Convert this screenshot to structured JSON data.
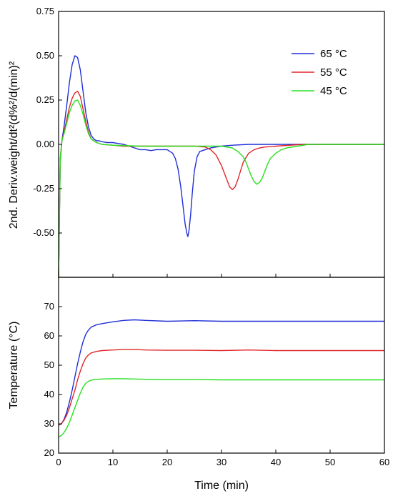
{
  "chart_data": [
    {
      "type": "line",
      "panel": "top",
      "ylabel": "2nd. Deriv.weight/dt²(d%²/d(min)²",
      "ylim": [
        -0.75,
        0.75
      ],
      "yticks": [
        "-0.50",
        "-0.25",
        "0.00",
        "0.25",
        "0.50",
        "0.75"
      ],
      "xlim": [
        0,
        60
      ],
      "legend_placement": "top-right",
      "series": [
        {
          "name": "65 °C",
          "color": "#1f2fd6",
          "x": [
            0.0,
            0.3,
            0.6,
            1.0,
            1.5,
            2.0,
            2.5,
            3.0,
            3.5,
            4.0,
            4.5,
            5.0,
            5.5,
            6.0,
            6.5,
            7.0,
            7.5,
            8.0,
            9.0,
            10.0,
            11.0,
            12.0,
            13.0,
            14.0,
            15.0,
            16.0,
            17.0,
            18.0,
            19.0,
            20.0,
            21.0,
            21.5,
            22.0,
            22.5,
            23.0,
            23.3,
            23.6,
            23.8,
            24.0,
            24.3,
            24.6,
            25.0,
            25.5,
            26.0,
            27.0,
            28.0,
            29.0,
            30.0,
            32.0,
            35.0,
            40.0,
            45.0,
            50.0,
            55.0,
            60.0
          ],
          "y": [
            -0.75,
            -0.1,
            0.02,
            0.1,
            0.22,
            0.35,
            0.45,
            0.5,
            0.49,
            0.42,
            0.3,
            0.18,
            0.1,
            0.05,
            0.03,
            0.02,
            0.02,
            0.015,
            0.01,
            0.01,
            0.005,
            0.0,
            -0.01,
            -0.02,
            -0.03,
            -0.03,
            -0.035,
            -0.03,
            -0.03,
            -0.03,
            -0.05,
            -0.08,
            -0.14,
            -0.24,
            -0.37,
            -0.45,
            -0.5,
            -0.52,
            -0.49,
            -0.4,
            -0.28,
            -0.15,
            -0.07,
            -0.04,
            -0.03,
            -0.02,
            -0.015,
            -0.01,
            -0.005,
            0.0,
            0.0,
            0.0,
            0.0,
            0.0,
            0.0
          ]
        },
        {
          "name": "55 °C",
          "color": "#e0262b",
          "x": [
            0.0,
            0.3,
            0.6,
            1.0,
            1.5,
            2.0,
            2.5,
            3.0,
            3.5,
            4.0,
            4.5,
            5.0,
            5.5,
            6.0,
            7.0,
            8.0,
            10.0,
            12.0,
            15.0,
            20.0,
            25.0,
            27.0,
            28.0,
            29.0,
            30.0,
            30.5,
            31.0,
            31.5,
            32.0,
            32.5,
            33.0,
            33.5,
            34.0,
            35.0,
            36.0,
            37.0,
            38.0,
            40.0,
            45.0,
            50.0,
            55.0,
            60.0
          ],
          "y": [
            -0.75,
            -0.08,
            0.02,
            0.07,
            0.14,
            0.21,
            0.26,
            0.29,
            0.3,
            0.27,
            0.2,
            0.13,
            0.07,
            0.03,
            0.01,
            0.0,
            -0.005,
            -0.01,
            -0.01,
            -0.01,
            -0.01,
            -0.015,
            -0.03,
            -0.06,
            -0.12,
            -0.16,
            -0.2,
            -0.24,
            -0.255,
            -0.24,
            -0.2,
            -0.15,
            -0.1,
            -0.05,
            -0.03,
            -0.02,
            -0.015,
            -0.01,
            0.0,
            0.0,
            0.0,
            0.0
          ]
        },
        {
          "name": "45 °C",
          "color": "#27e01e",
          "x": [
            0.0,
            0.3,
            0.6,
            1.0,
            1.5,
            2.0,
            2.5,
            3.0,
            3.5,
            4.0,
            4.5,
            5.0,
            5.5,
            6.0,
            7.0,
            8.0,
            10.0,
            15.0,
            20.0,
            25.0,
            30.0,
            32.0,
            33.0,
            34.0,
            34.5,
            35.0,
            35.5,
            36.0,
            36.5,
            37.0,
            37.5,
            38.0,
            38.5,
            39.0,
            40.0,
            41.0,
            42.0,
            44.0,
            46.0,
            50.0,
            55.0,
            60.0
          ],
          "y": [
            -0.75,
            -0.08,
            0.02,
            0.06,
            0.12,
            0.18,
            0.22,
            0.245,
            0.25,
            0.22,
            0.17,
            0.11,
            0.06,
            0.03,
            0.01,
            0.0,
            -0.005,
            -0.01,
            -0.01,
            -0.01,
            -0.01,
            -0.02,
            -0.04,
            -0.07,
            -0.1,
            -0.14,
            -0.18,
            -0.21,
            -0.225,
            -0.215,
            -0.19,
            -0.15,
            -0.11,
            -0.08,
            -0.05,
            -0.03,
            -0.02,
            -0.01,
            0.0,
            0.0,
            0.0,
            0.0
          ]
        }
      ]
    },
    {
      "type": "line",
      "panel": "bottom",
      "xlabel": "Time (min)",
      "ylabel": "Temperature (°C)",
      "xlim": [
        0,
        60
      ],
      "ylim": [
        20,
        80
      ],
      "xticks": [
        "0",
        "10",
        "20",
        "30",
        "40",
        "50",
        "60"
      ],
      "yticks": [
        "20",
        "30",
        "40",
        "50",
        "60",
        "70"
      ],
      "series": [
        {
          "name": "65 °C",
          "color": "#1f2fd6",
          "x": [
            0,
            0.5,
            1,
            1.5,
            2,
            2.5,
            3,
            3.5,
            4,
            4.5,
            5,
            5.5,
            6,
            7,
            8,
            10,
            12,
            14,
            16,
            20,
            25,
            30,
            35,
            40,
            50,
            60
          ],
          "y": [
            29.5,
            30.0,
            31.5,
            34.0,
            37.5,
            41.5,
            46.0,
            50.5,
            54.5,
            58.0,
            60.5,
            62.0,
            63.0,
            63.8,
            64.2,
            64.8,
            65.3,
            65.5,
            65.3,
            65.0,
            65.2,
            65.0,
            65.0,
            65.0,
            65.0,
            65.0
          ]
        },
        {
          "name": "55 °C",
          "color": "#e0262b",
          "x": [
            0,
            0.5,
            1,
            1.5,
            2,
            2.5,
            3,
            3.5,
            4,
            4.5,
            5,
            5.5,
            6,
            7,
            8,
            10,
            12,
            14,
            16,
            20,
            25,
            30,
            35,
            40,
            50,
            60
          ],
          "y": [
            29.5,
            30.0,
            31.2,
            33.0,
            35.5,
            38.5,
            41.5,
            45.0,
            48.0,
            50.5,
            52.5,
            53.5,
            54.2,
            54.7,
            55.0,
            55.2,
            55.4,
            55.4,
            55.2,
            55.1,
            55.1,
            55.0,
            55.2,
            55.0,
            55.0,
            55.0
          ]
        },
        {
          "name": "45 °C",
          "color": "#27e01e",
          "x": [
            0,
            0.5,
            1,
            1.5,
            2,
            2.5,
            3,
            3.5,
            4,
            4.5,
            5,
            5.5,
            6,
            7,
            8,
            10,
            12,
            14,
            16,
            20,
            25,
            30,
            35,
            40,
            50,
            60
          ],
          "y": [
            25.5,
            26.0,
            27.0,
            28.5,
            30.5,
            33.0,
            35.5,
            38.0,
            40.5,
            42.5,
            43.8,
            44.5,
            44.9,
            45.2,
            45.3,
            45.4,
            45.4,
            45.3,
            45.2,
            45.1,
            45.1,
            45.0,
            45.0,
            45.0,
            45.0,
            45.0
          ]
        }
      ]
    }
  ],
  "legend": [
    {
      "label": "65 °C",
      "color": "#1f2fd6"
    },
    {
      "label": "55 °C",
      "color": "#e0262b"
    },
    {
      "label": "45 °C",
      "color": "#27e01e"
    }
  ]
}
